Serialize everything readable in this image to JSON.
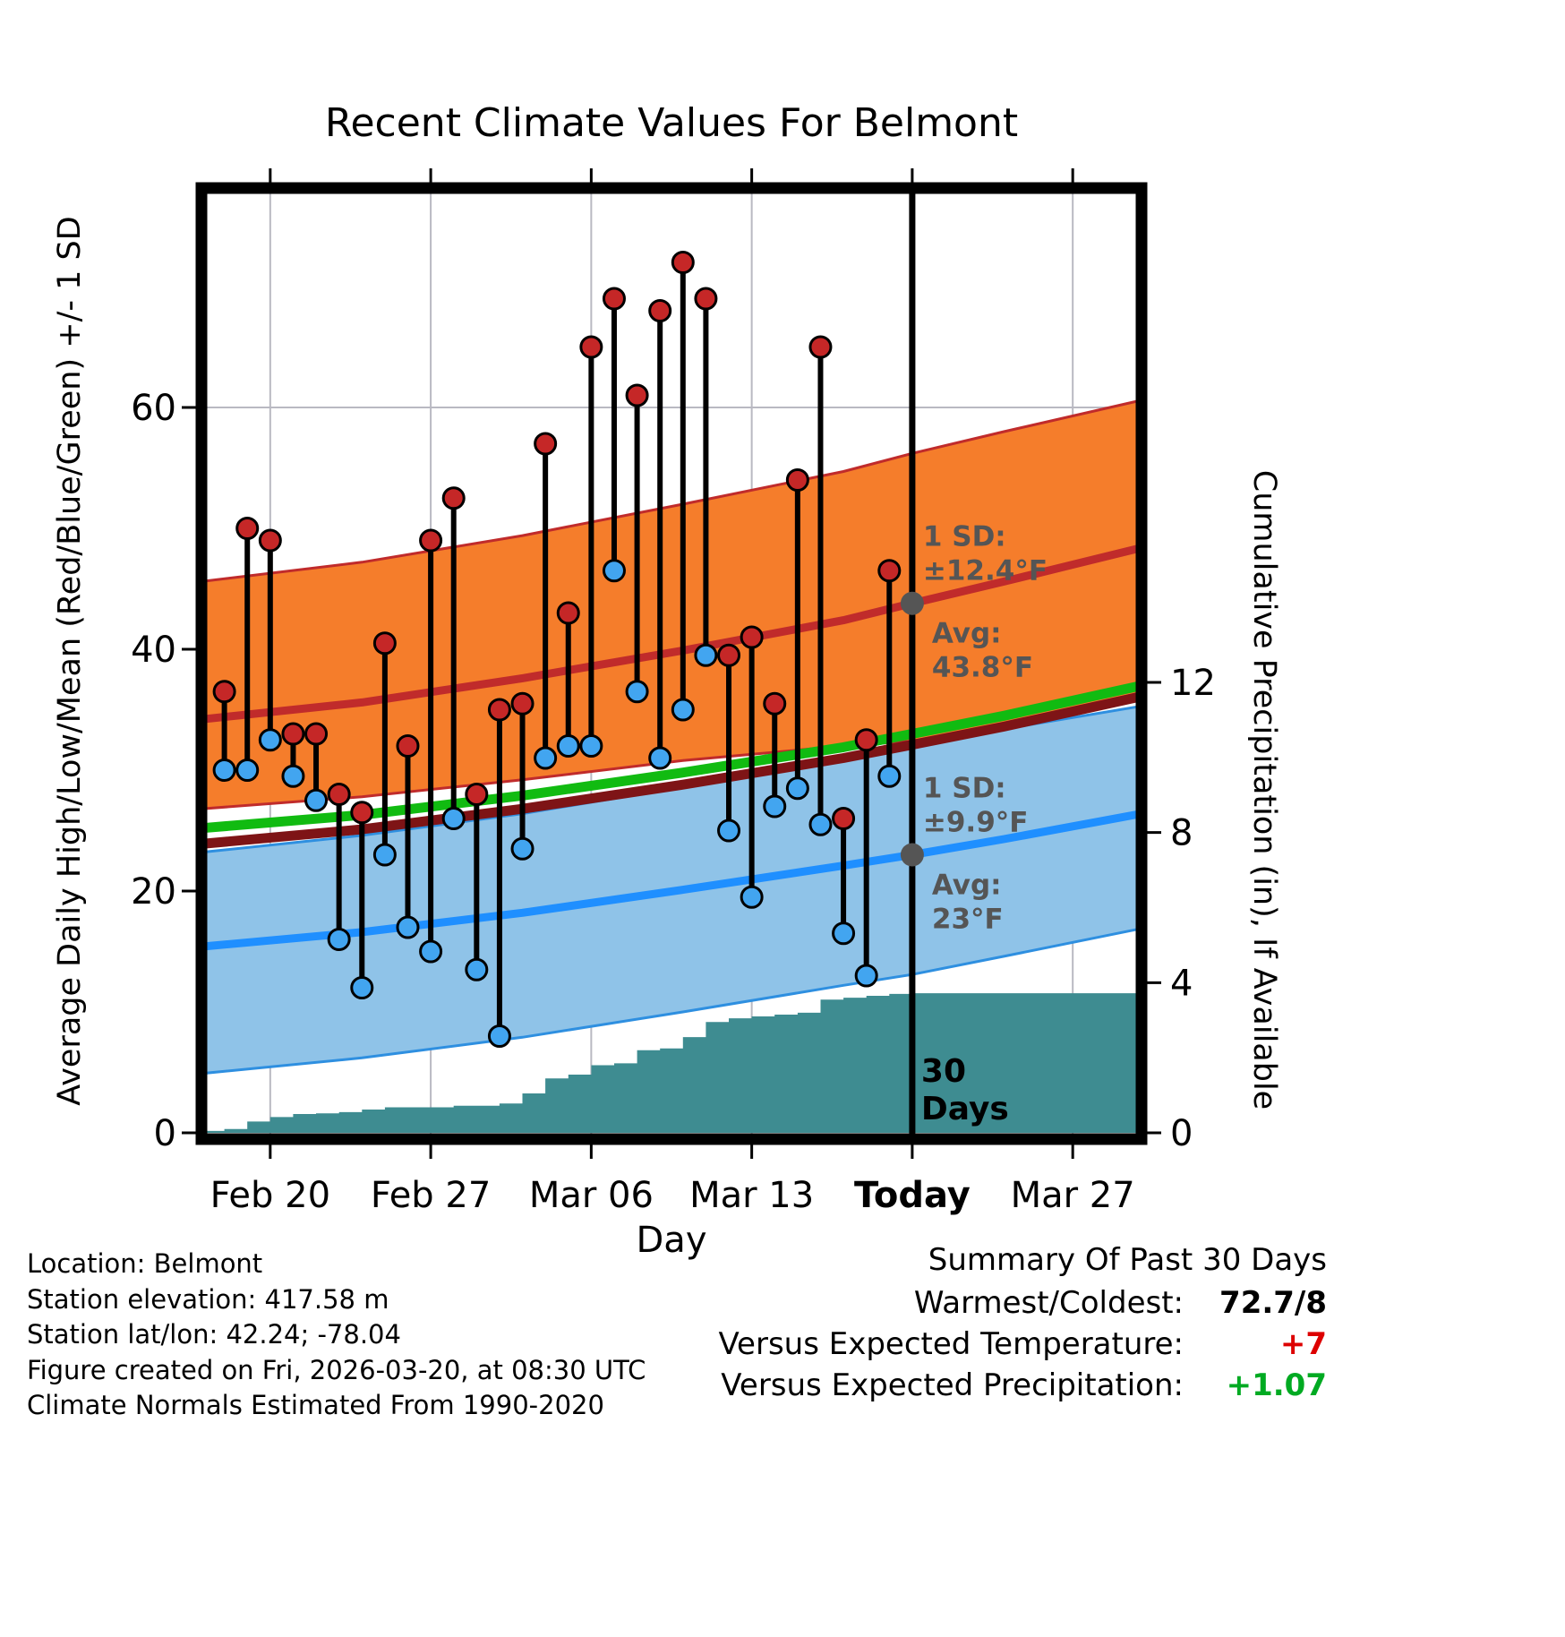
{
  "page": {
    "background": "#ffffff"
  },
  "chart_data": {
    "type": "line",
    "title": "Recent Climate Values For Belmont",
    "xlabel": "Day",
    "ylabel_left": "Average Daily High/Low/Mean (Red/Blue/Green) +/- 1 SD",
    "ylabel_right": "Cumulative Precipitation (in), If Available",
    "grid": true,
    "legend_position": "none",
    "x_domain_days": [
      0,
      41
    ],
    "y_left_domain_f": [
      0,
      78
    ],
    "y_left_ticks": [
      0,
      20,
      40,
      60
    ],
    "y_right_ticks": [
      0,
      4,
      8,
      12
    ],
    "x_ticks": [
      {
        "day": 3,
        "label": "Feb 20",
        "bold": false
      },
      {
        "day": 10,
        "label": "Feb 27",
        "bold": false
      },
      {
        "day": 17,
        "label": "Mar 06",
        "bold": false
      },
      {
        "day": 24,
        "label": "Mar 13",
        "bold": false
      },
      {
        "day": 31,
        "label": "Today",
        "bold": true
      },
      {
        "day": 38,
        "label": "Mar 27",
        "bold": false
      }
    ],
    "today_day": 31,
    "climatology": {
      "high_avg": [
        [
          0,
          34.2
        ],
        [
          7,
          35.6
        ],
        [
          14,
          37.6
        ],
        [
          21,
          39.9
        ],
        [
          28,
          42.4
        ],
        [
          31,
          43.8
        ],
        [
          35,
          45.6
        ],
        [
          41,
          48.4
        ]
      ],
      "high_upper": [
        [
          0,
          45.6
        ],
        [
          7,
          47.2
        ],
        [
          14,
          49.4
        ],
        [
          21,
          52.0
        ],
        [
          28,
          54.7
        ],
        [
          31,
          56.2
        ],
        [
          35,
          58.0
        ],
        [
          41,
          60.6
        ]
      ],
      "high_lower": [
        [
          0,
          26.8
        ],
        [
          7,
          27.8
        ],
        [
          14,
          29.2
        ],
        [
          21,
          30.8
        ],
        [
          28,
          32.0
        ],
        [
          31,
          32.4
        ],
        [
          35,
          33.8
        ],
        [
          41,
          36.4
        ]
      ],
      "mean": [
        [
          0,
          25.2
        ],
        [
          7,
          26.3
        ],
        [
          14,
          27.9
        ],
        [
          21,
          29.8
        ],
        [
          28,
          31.9
        ],
        [
          31,
          33.0
        ],
        [
          35,
          34.5
        ],
        [
          41,
          37.0
        ]
      ],
      "mean_lower": [
        [
          0,
          23.9
        ],
        [
          7,
          25.1
        ],
        [
          14,
          26.8
        ],
        [
          21,
          28.8
        ],
        [
          28,
          31.0
        ],
        [
          31,
          32.1
        ],
        [
          35,
          33.6
        ],
        [
          41,
          36.1
        ]
      ],
      "low_upper": [
        [
          0,
          23.2
        ],
        [
          7,
          24.6
        ],
        [
          14,
          26.4
        ],
        [
          21,
          28.6
        ],
        [
          28,
          30.9
        ],
        [
          31,
          32.1
        ],
        [
          35,
          33.4
        ],
        [
          41,
          35.3
        ]
      ],
      "low_avg": [
        [
          0,
          15.4
        ],
        [
          7,
          16.6
        ],
        [
          14,
          18.2
        ],
        [
          21,
          20.1
        ],
        [
          28,
          22.1
        ],
        [
          31,
          23.0
        ],
        [
          35,
          24.3
        ],
        [
          41,
          26.4
        ]
      ],
      "low_lower": [
        [
          0,
          4.9
        ],
        [
          7,
          6.2
        ],
        [
          14,
          7.9
        ],
        [
          21,
          10.0
        ],
        [
          28,
          12.2
        ],
        [
          31,
          13.1
        ],
        [
          35,
          14.6
        ],
        [
          41,
          16.9
        ]
      ]
    },
    "daily_high_low": [
      [
        1,
        36.5,
        30
      ],
      [
        2,
        50,
        30
      ],
      [
        3,
        49,
        32.5
      ],
      [
        4,
        33,
        29.5
      ],
      [
        5,
        33,
        27.5
      ],
      [
        6,
        28,
        16
      ],
      [
        7,
        26.5,
        12
      ],
      [
        8,
        40.5,
        23
      ],
      [
        9,
        32,
        17
      ],
      [
        10,
        49,
        15
      ],
      [
        11,
        52.5,
        26
      ],
      [
        12,
        28,
        13.5
      ],
      [
        13,
        35,
        8
      ],
      [
        14,
        35.5,
        23.5
      ],
      [
        15,
        57,
        31
      ],
      [
        16,
        43,
        32
      ],
      [
        17,
        65,
        32
      ],
      [
        18,
        69,
        46.5
      ],
      [
        19,
        61,
        36.5
      ],
      [
        20,
        68,
        31
      ],
      [
        21,
        72,
        35
      ],
      [
        22,
        69,
        39.5
      ],
      [
        23,
        39.5,
        25
      ],
      [
        24,
        41,
        19.5
      ],
      [
        25,
        35.5,
        27
      ],
      [
        26,
        54,
        28.5
      ],
      [
        27,
        65,
        25.5
      ],
      [
        28,
        26,
        16.5
      ],
      [
        29,
        32.5,
        13
      ],
      [
        30,
        46.5,
        29.5
      ]
    ],
    "precip_cumulative_steps": [
      [
        0,
        0.05
      ],
      [
        1,
        0.1
      ],
      [
        2,
        0.3
      ],
      [
        3,
        0.42
      ],
      [
        4,
        0.5
      ],
      [
        5,
        0.52
      ],
      [
        6,
        0.55
      ],
      [
        7,
        0.62
      ],
      [
        8,
        0.68
      ],
      [
        9,
        0.68
      ],
      [
        10,
        0.68
      ],
      [
        11,
        0.72
      ],
      [
        12,
        0.72
      ],
      [
        13,
        0.78
      ],
      [
        14,
        1.05
      ],
      [
        15,
        1.45
      ],
      [
        16,
        1.55
      ],
      [
        17,
        1.8
      ],
      [
        18,
        1.85
      ],
      [
        19,
        2.2
      ],
      [
        20,
        2.25
      ],
      [
        21,
        2.55
      ],
      [
        22,
        2.95
      ],
      [
        23,
        3.05
      ],
      [
        24,
        3.1
      ],
      [
        25,
        3.15
      ],
      [
        26,
        3.2
      ],
      [
        27,
        3.55
      ],
      [
        28,
        3.6
      ],
      [
        29,
        3.65
      ],
      [
        30,
        3.7
      ],
      [
        31,
        3.72
      ],
      [
        41,
        3.72
      ]
    ],
    "annotations": {
      "high": {
        "sd_label": "1 SD:",
        "sd_value": "±12.4°F",
        "avg_label": "Avg:",
        "avg_value": "43.8°F",
        "dot_f": 43.8
      },
      "low": {
        "sd_label": "1 SD:",
        "sd_value": "±9.9°F",
        "avg_label": "Avg:",
        "avg_value": "23°F",
        "dot_f": 23
      },
      "today_label_lines": [
        "30",
        "Days"
      ]
    },
    "colors": {
      "grid": "#b9b9c2",
      "high_band": "#F57D2B",
      "high_band_edge": "#C02B2B",
      "high_line": "#C02B2B",
      "maroon_line": "#7E1416",
      "mean_line": "#11BB11",
      "low_band": "#8FC3E8",
      "low_band_edge": "#2E8FE0",
      "low_line": "#1F8FFF",
      "high_dot": "#C52727",
      "low_dot": "#42A5F0",
      "precip": "#3E8C91",
      "annotation": "#555555",
      "today_line": "#000000",
      "frame": "#000000"
    }
  },
  "footer": {
    "lines": [
      "Location: Belmont",
      "Station elevation: 417.58 m",
      "Station lat/lon: 42.24; -78.04",
      "Figure created on Fri, 2026-03-20, at 08:30 UTC",
      "Climate Normals Estimated From 1990-2020"
    ]
  },
  "summary": {
    "title": "Summary Of Past 30 Days",
    "rows": [
      {
        "label": "Warmest/Coldest:",
        "value": "72.7/8",
        "color": "#000000"
      },
      {
        "label": "Versus Expected Temperature:",
        "value": "+7",
        "color": "#dd0000"
      },
      {
        "label": "Versus Expected Precipitation:",
        "value": "+1.07",
        "color": "#00a à22"
      }
    ]
  }
}
